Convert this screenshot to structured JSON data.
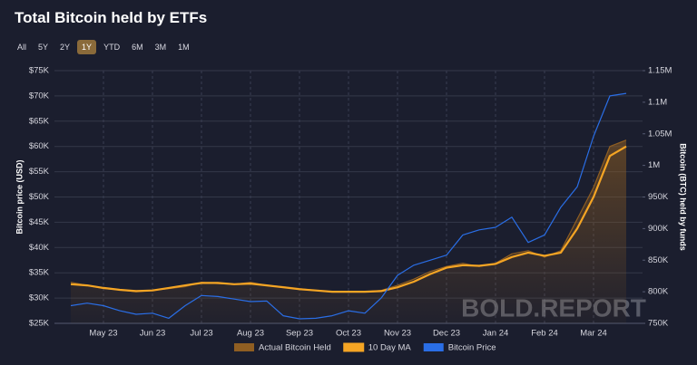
{
  "chart_data": {
    "type": "line",
    "title": "Total Bitcoin held by ETFs",
    "range_options": [
      "All",
      "5Y",
      "2Y",
      "1Y",
      "YTD",
      "6M",
      "3M",
      "1M"
    ],
    "selected_range": "1Y",
    "y_label": "Bitcoin price (USD)",
    "y2_label": "Bitcoin (BTC) held by funds",
    "watermark": "BOLD.REPORT",
    "categories": [
      null,
      null,
      "May 23",
      null,
      null,
      "Jun 23",
      null,
      null,
      "Jul 23",
      null,
      null,
      "Aug 23",
      null,
      null,
      "Sep 23",
      null,
      null,
      "Oct 23",
      null,
      null,
      "Nov 23",
      null,
      null,
      "Dec 23",
      null,
      null,
      "Jan 24",
      null,
      null,
      "Feb 24",
      null,
      null,
      "Mar 24",
      null,
      null
    ],
    "ylim": [
      25000,
      75000
    ],
    "yticks": [
      {
        "value": 25000,
        "label": "$25K"
      },
      {
        "value": 30000,
        "label": "$30K"
      },
      {
        "value": 35000,
        "label": "$35K"
      },
      {
        "value": 40000,
        "label": "$40K"
      },
      {
        "value": 45000,
        "label": "$45K"
      },
      {
        "value": 50000,
        "label": "$50K"
      },
      {
        "value": 55000,
        "label": "$55K"
      },
      {
        "value": 60000,
        "label": "$60K"
      },
      {
        "value": 65000,
        "label": "$65K"
      },
      {
        "value": 70000,
        "label": "$70K"
      },
      {
        "value": 75000,
        "label": "$75K"
      }
    ],
    "y2lim": [
      750000,
      1150000
    ],
    "y2ticks": [
      {
        "value": 750000,
        "label": "750K"
      },
      {
        "value": 800000,
        "label": "800K"
      },
      {
        "value": 850000,
        "label": "850K"
      },
      {
        "value": 900000,
        "label": "900K"
      },
      {
        "value": 950000,
        "label": "950K"
      },
      {
        "value": 1000000,
        "label": "1M"
      },
      {
        "value": 1050000,
        "label": "1.05M"
      },
      {
        "value": 1100000,
        "label": "1.1M"
      },
      {
        "value": 1150000,
        "label": "1.15M"
      }
    ],
    "grid": true,
    "series": [
      {
        "name": "Actual Bitcoin Held",
        "color": "#8f5e22",
        "axis": "y2",
        "area": true,
        "values": [
          815000,
          810000,
          805000,
          803000,
          800000,
          802000,
          805000,
          808000,
          815000,
          813000,
          812000,
          815000,
          810000,
          808000,
          805000,
          802000,
          800000,
          800000,
          800000,
          802000,
          810000,
          820000,
          832000,
          840000,
          845000,
          840000,
          845000,
          860000,
          865000,
          855000,
          865000,
          915000,
          965000,
          1030000,
          1040000
        ]
      },
      {
        "name": "10 Day MA",
        "color": "#f5a524",
        "axis": "y2",
        "values": [
          812000,
          810000,
          806000,
          803000,
          801000,
          802000,
          806000,
          810000,
          814000,
          814000,
          812000,
          813000,
          810000,
          807000,
          804000,
          802000,
          800000,
          800000,
          800000,
          801000,
          807000,
          816000,
          828000,
          838000,
          842000,
          841000,
          844000,
          855000,
          862000,
          857000,
          862000,
          900000,
          950000,
          1015000,
          1030000
        ]
      },
      {
        "name": "Bitcoin Price",
        "color": "#2a6ee6",
        "axis": "y",
        "values": [
          28500,
          29000,
          28500,
          27500,
          26800,
          27000,
          26000,
          28500,
          30500,
          30300,
          29800,
          29300,
          29400,
          26500,
          25900,
          26000,
          26500,
          27500,
          27000,
          30000,
          34500,
          36500,
          37500,
          38500,
          42500,
          43500,
          44000,
          46000,
          41000,
          42500,
          48000,
          52000,
          62000,
          70000,
          70500
        ]
      }
    ]
  }
}
